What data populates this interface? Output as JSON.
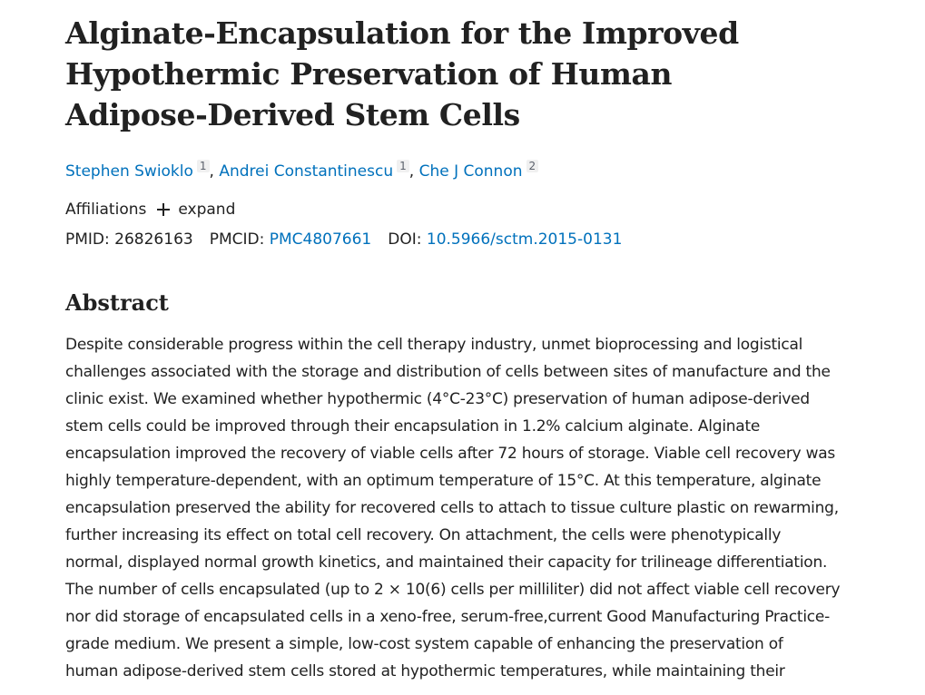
{
  "article": {
    "title": "Alginate-Encapsulation for the Improved Hypothermic Preservation of Human Adipose-Derived Stem Cells",
    "authors": [
      {
        "name": "Stephen Swioklo",
        "aff": "1"
      },
      {
        "name": "Andrei Constantinescu",
        "aff": "1"
      },
      {
        "name": "Che J Connon",
        "aff": "2"
      }
    ],
    "separator": ",",
    "affiliations_label": "Affiliations",
    "expand_label": "expand",
    "pmid_label": "PMID:",
    "pmid": "26826163",
    "pmcid_label": "PMCID:",
    "pmcid": "PMC4807661",
    "doi_label": "DOI:",
    "doi": "10.5966/sctm.2015-0131"
  },
  "abstract": {
    "heading": "Abstract",
    "lines": [
      "Despite considerable progress within the cell therapy industry, unmet bioprocessing and logistical",
      "challenges associated with the storage and distribution of cells between sites of manufacture and the",
      "clinic exist. We examined whether hypothermic (4°C-23°C) preservation of human adipose-derived",
      "stem cells could be improved through their encapsulation in 1.2% calcium alginate. Alginate",
      "encapsulation improved the recovery of viable cells after 72 hours of storage. Viable cell recovery was",
      "highly temperature-dependent, with an optimum temperature of 15°C. At this temperature, alginate",
      "encapsulation preserved the ability for recovered cells to attach to tissue culture plastic on rewarming,",
      "further increasing its effect on total cell recovery. On attachment, the cells were phenotypically",
      "normal, displayed normal growth kinetics, and maintained their capacity for trilineage differentiation.",
      "The number of cells encapsulated (up to 2 × 10(6) cells per milliliter) did not affect viable cell recovery",
      "nor did storage of encapsulated cells in a xeno-free, serum-free,current Good Manufacturing Practice-",
      "grade medium. We present a simple, low-cost system capable of enhancing the preservation of",
      "human adipose-derived stem cells stored at hypothermic temperatures, while maintaining their"
    ]
  },
  "colors": {
    "link": "#0071bc",
    "text": "#212121",
    "badge_bg": "#f0f0f0"
  }
}
